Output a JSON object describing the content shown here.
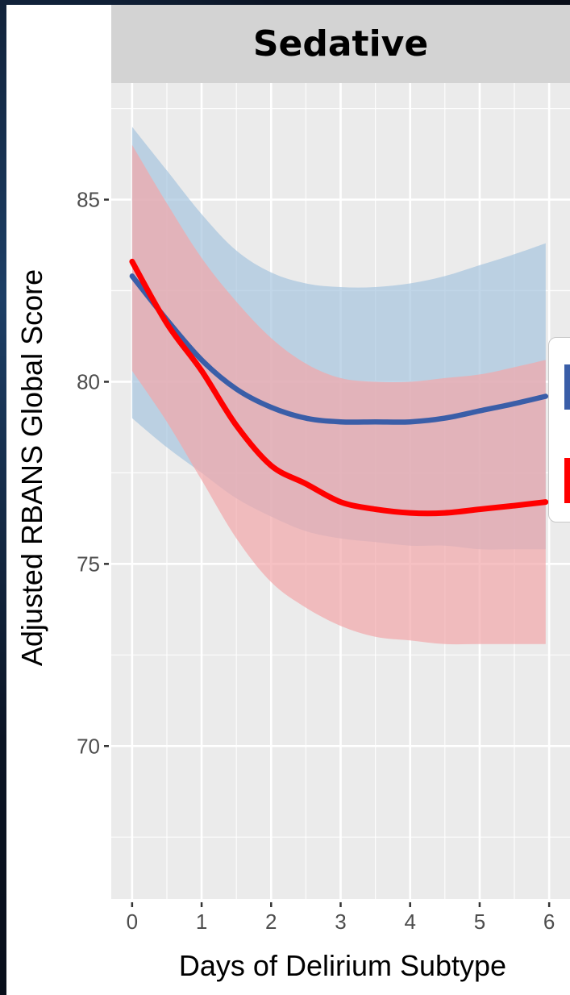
{
  "chart_data": {
    "type": "line",
    "title": "Sedative",
    "xlabel": "Days of Delirium Subtype",
    "ylabel": "Adjusted RBANS Global Score",
    "xlim": [
      -0.3,
      6.3
    ],
    "ylim": [
      65.8,
      88.2
    ],
    "x_ticks": [
      0,
      1,
      2,
      3,
      4,
      5,
      6
    ],
    "y_ticks": [
      70,
      75,
      80,
      85
    ],
    "grid": true,
    "legend": "right (cropped)",
    "series": [
      {
        "color": "#3a5ea8",
        "band_color": "#a7c4de",
        "x": [
          0,
          0.5,
          1,
          1.5,
          2,
          2.5,
          3,
          3.5,
          4,
          4.5,
          5,
          5.5,
          5.95
        ],
        "y": [
          82.9,
          81.7,
          80.6,
          79.8,
          79.3,
          79.0,
          78.9,
          78.9,
          78.9,
          79.0,
          79.2,
          79.4,
          79.6
        ],
        "upper": [
          87.0,
          85.8,
          84.6,
          83.6,
          83.0,
          82.7,
          82.6,
          82.6,
          82.7,
          82.9,
          83.2,
          83.5,
          83.8
        ],
        "lower": [
          79.0,
          78.2,
          77.5,
          76.8,
          76.3,
          75.9,
          75.7,
          75.6,
          75.5,
          75.5,
          75.4,
          75.4,
          75.4
        ]
      },
      {
        "color": "#ff0000",
        "band_color": "#f2a6aa",
        "x": [
          0,
          0.5,
          1,
          1.5,
          2,
          2.5,
          3,
          3.5,
          4,
          4.5,
          5,
          5.5,
          5.95
        ],
        "y": [
          83.3,
          81.6,
          80.3,
          78.8,
          77.7,
          77.2,
          76.7,
          76.5,
          76.4,
          76.4,
          76.5,
          76.6,
          76.7
        ],
        "upper": [
          86.5,
          84.9,
          83.4,
          82.2,
          81.2,
          80.5,
          80.1,
          80.0,
          80.0,
          80.1,
          80.2,
          80.4,
          80.6
        ],
        "lower": [
          80.3,
          78.9,
          77.3,
          75.7,
          74.5,
          73.8,
          73.3,
          73.0,
          72.9,
          72.8,
          72.8,
          72.8,
          72.8
        ]
      }
    ]
  }
}
